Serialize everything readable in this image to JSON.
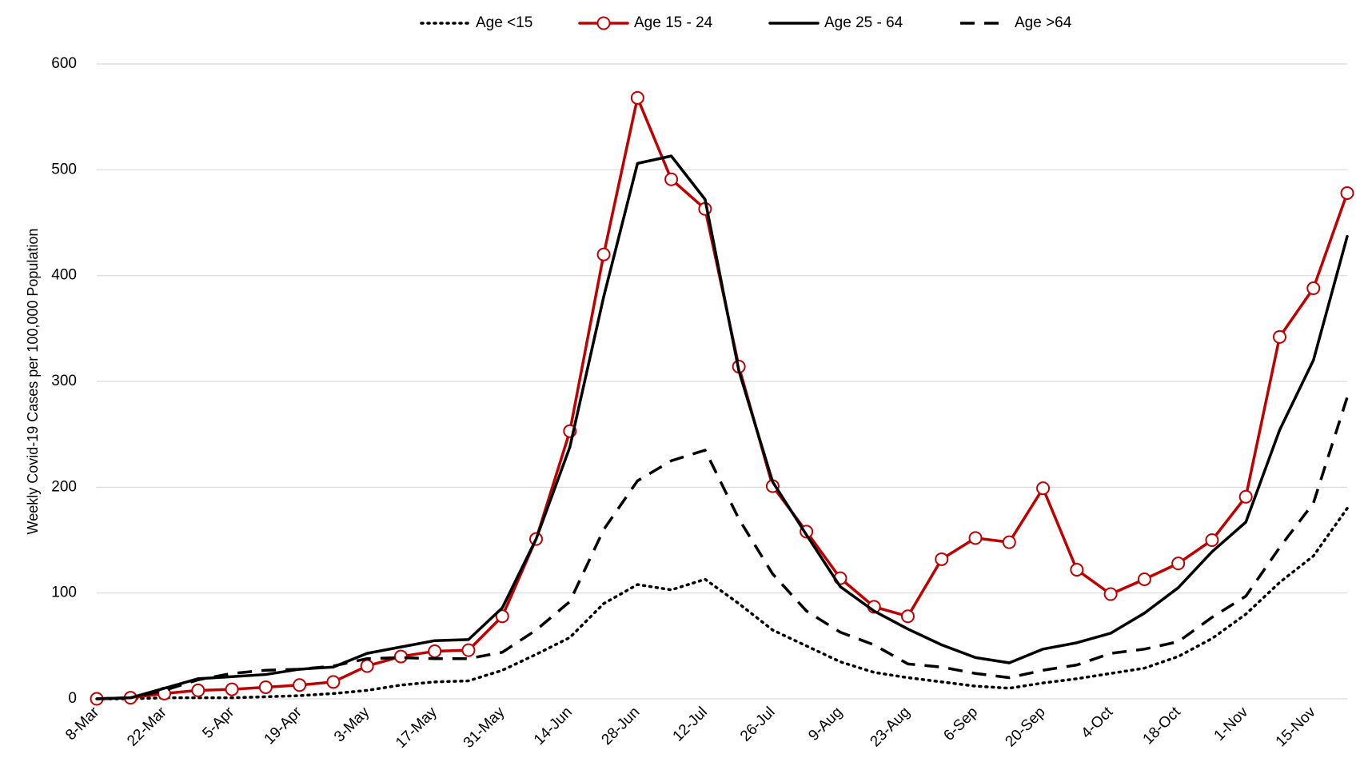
{
  "chart_data": {
    "type": "line",
    "y_label": "Weekly Covid-19 Cases per 100,000 Population",
    "categories": [
      "8-Mar",
      null,
      "22-Mar",
      null,
      "5-Apr",
      null,
      "19-Apr",
      null,
      "3-May",
      null,
      "17-May",
      null,
      "31-May",
      null,
      "14-Jun",
      null,
      "28-Jun",
      null,
      "12-Jul",
      null,
      "26-Jul",
      null,
      "9-Aug",
      null,
      "23-Aug",
      null,
      "6-Sep",
      null,
      "20-Sep",
      null,
      "4-Oct",
      null,
      "18-Oct",
      null,
      "1-Nov",
      null,
      "15-Nov",
      null
    ],
    "series": [
      {
        "name": "Age <15",
        "color": "#000000",
        "dash": "dotted",
        "marker": "none",
        "values": [
          0,
          0,
          1,
          1,
          1,
          2,
          3,
          5,
          8,
          13,
          16,
          17,
          27,
          42,
          58,
          90,
          108,
          103,
          113,
          90,
          65,
          50,
          35,
          25,
          20,
          16,
          12,
          10,
          15,
          19,
          24,
          29,
          40,
          57,
          80,
          110,
          135,
          180
        ]
      },
      {
        "name": "Age 15 - 24",
        "color": "#c00000",
        "dash": "solid",
        "marker": "circle",
        "values": [
          0,
          1,
          5,
          8,
          9,
          11,
          13,
          16,
          31,
          40,
          45,
          46,
          78,
          151,
          253,
          420,
          568,
          491,
          463,
          314,
          201,
          158,
          114,
          87,
          78,
          132,
          152,
          148,
          199,
          122,
          99,
          113,
          128,
          150,
          191,
          342,
          388,
          478
        ]
      },
      {
        "name": "Age 25 - 64",
        "color": "#000000",
        "dash": "solid",
        "marker": "none",
        "values": [
          0,
          1,
          10,
          19,
          21,
          23,
          28,
          30,
          43,
          49,
          55,
          56,
          86,
          151,
          238,
          380,
          506,
          513,
          472,
          310,
          205,
          155,
          106,
          83,
          66,
          51,
          39,
          34,
          47,
          53,
          62,
          81,
          105,
          139,
          167,
          254,
          320,
          437
        ]
      },
      {
        "name": "Age >64",
        "color": "#000000",
        "dash": "dashed",
        "marker": "none",
        "values": [
          0,
          1,
          8,
          18,
          24,
          27,
          28,
          31,
          38,
          39,
          38,
          38,
          44,
          65,
          92,
          160,
          206,
          225,
          235,
          170,
          118,
          83,
          63,
          51,
          33,
          30,
          24,
          20,
          27,
          32,
          43,
          47,
          54,
          77,
          97,
          143,
          185,
          285
        ]
      }
    ],
    "ylim": [
      0,
      600
    ],
    "yticks": [
      0,
      100,
      200,
      300,
      400,
      500,
      600
    ],
    "grid": true,
    "legend": "top"
  }
}
